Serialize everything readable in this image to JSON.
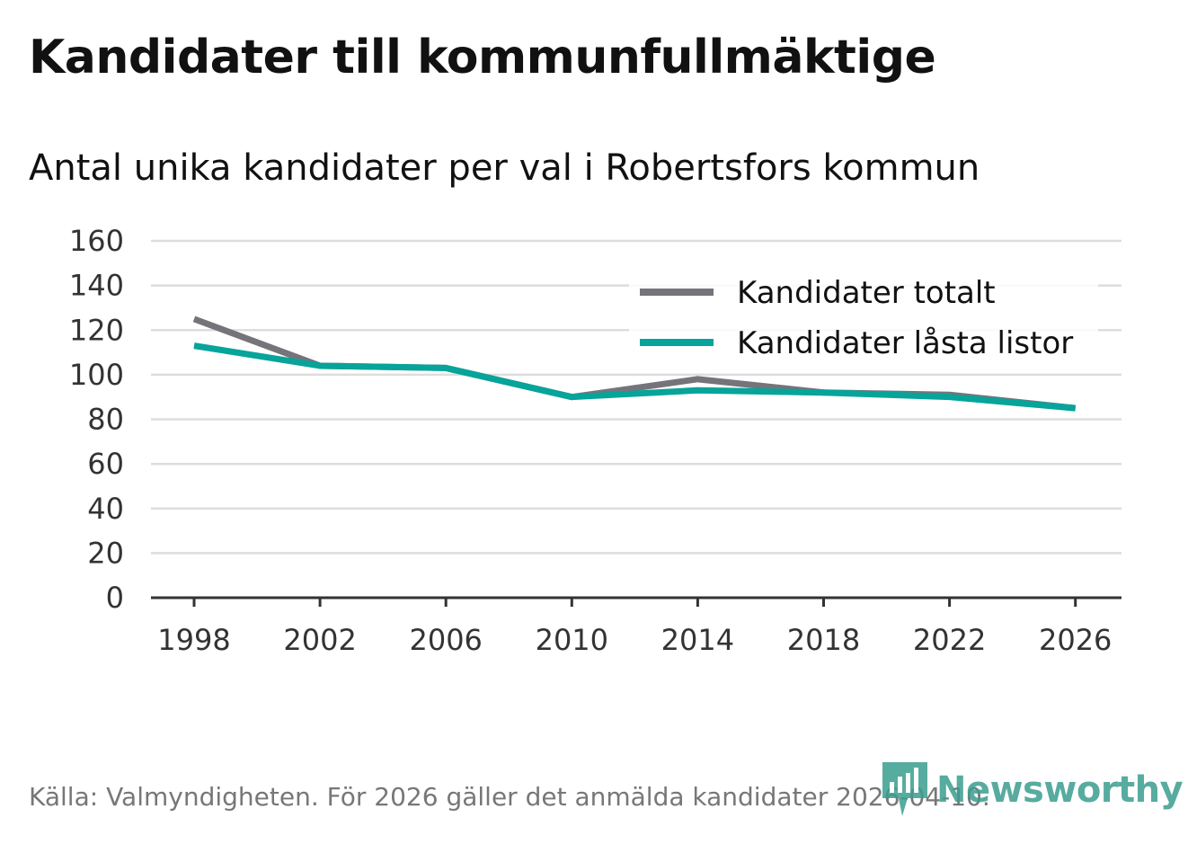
{
  "header": {
    "title": "Kandidater till kommunfullmäktige",
    "subtitle": "Antal unika kandidater per val i Robertsfors kommun"
  },
  "footer": {
    "source": "Källa: Valmyndigheten. För 2026 gäller det anmälda kandidater 2026-04-10.",
    "brand": "Newsworthy"
  },
  "colors": {
    "total": "#75747b",
    "locked": "#06a49a",
    "grid": "#dddddd",
    "axis": "#333333",
    "brand": "#3a9d8f"
  },
  "chart_data": {
    "type": "line",
    "title": "Kandidater till kommunfullmäktige",
    "subtitle": "Antal unika kandidater per val i Robertsfors kommun",
    "xlabel": "",
    "ylabel": "",
    "categories": [
      "1998",
      "2002",
      "2006",
      "2010",
      "2014",
      "2018",
      "2022",
      "2026"
    ],
    "y_ticks": [
      "0",
      "20",
      "40",
      "60",
      "80",
      "100",
      "120",
      "140",
      "160"
    ],
    "ylim": [
      0,
      160
    ],
    "grid": true,
    "legend_position": "top-right",
    "series": [
      {
        "name": "Kandidater totalt",
        "color": "#75747b",
        "values": [
          125,
          104,
          103,
          90,
          98,
          92,
          91,
          85
        ]
      },
      {
        "name": "Kandidater låsta listor",
        "color": "#06a49a",
        "values": [
          113,
          104,
          103,
          90,
          93,
          92,
          90,
          85
        ]
      }
    ]
  }
}
